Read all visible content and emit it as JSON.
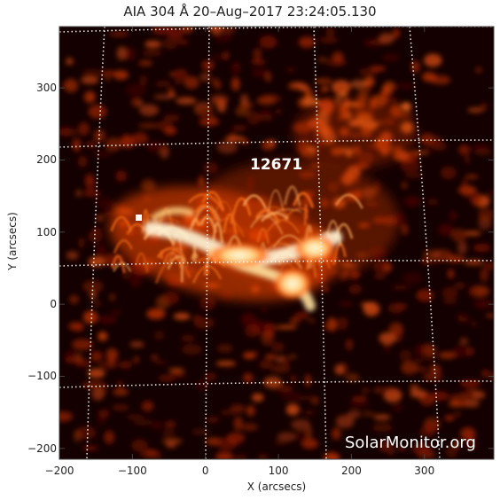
{
  "title": "AIA 304 Å 20–Aug–2017 23:24:05.130",
  "x_axis": {
    "label": "X (arcsecs)",
    "range": [
      -200,
      395
    ],
    "ticks": [
      -200,
      -100,
      0,
      100,
      200,
      300
    ]
  },
  "y_axis": {
    "label": "Y (arcsecs)",
    "range": [
      -215,
      385
    ],
    "ticks": [
      -200,
      -100,
      0,
      100,
      200,
      300
    ]
  },
  "active_region": {
    "number": "12671",
    "x": 95,
    "y": 190
  },
  "watermark": "SolarMonitor.org",
  "colors": {
    "background": "#140000",
    "plasma": "#ff5a10",
    "bright_core": "#fff2c8",
    "grid": "#ffffff"
  }
}
